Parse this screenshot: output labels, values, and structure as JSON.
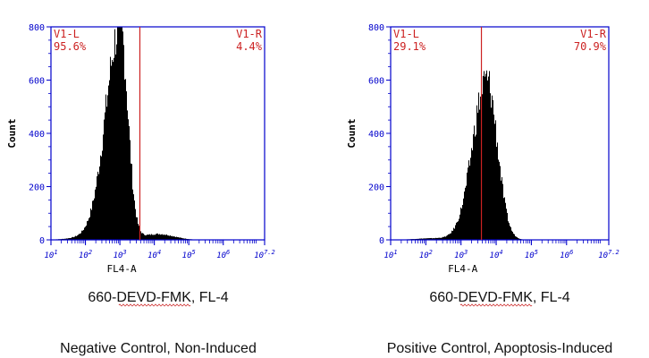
{
  "chart_data": [
    {
      "type": "histogram",
      "ylabel": "Count",
      "xlabel": "FL4-A",
      "x_scale": "log10",
      "xlim": [
        1,
        7.2
      ],
      "ylim": [
        0,
        800
      ],
      "yticks": [
        "0",
        "200",
        "400",
        "600",
        "800"
      ],
      "xticks": [
        "10^1",
        "10^2",
        "10^3",
        "10^4",
        "10^5",
        "10^6",
        "10^7.2"
      ],
      "gate_x_log": 3.58,
      "regions": [
        {
          "name": "V1-L",
          "value": "95.6%"
        },
        {
          "name": "V1-R",
          "value": "4.4%"
        }
      ],
      "peak_x_log": 3.0,
      "peak_count": 800,
      "caption_line1": "660-DEVD-FMK, FL-4",
      "caption_line2": "Negative Control, Non-Induced"
    },
    {
      "type": "histogram",
      "ylabel": "Count",
      "xlabel": "FL4-A",
      "x_scale": "log10",
      "xlim": [
        1,
        7.2
      ],
      "ylim": [
        0,
        800
      ],
      "yticks": [
        "0",
        "200",
        "400",
        "600",
        "800"
      ],
      "xticks": [
        "10^1",
        "10^2",
        "10^3",
        "10^4",
        "10^5",
        "10^6",
        "10^7.2"
      ],
      "gate_x_log": 3.58,
      "regions": [
        {
          "name": "V1-L",
          "value": "29.1%"
        },
        {
          "name": "V1-R",
          "value": "70.9%"
        }
      ],
      "peak_x_log": 3.72,
      "peak_count": 600,
      "caption_line1": "660-DEVD-FMK, FL-4",
      "caption_line2": "Positive Control, Apoptosis-Induced"
    }
  ]
}
